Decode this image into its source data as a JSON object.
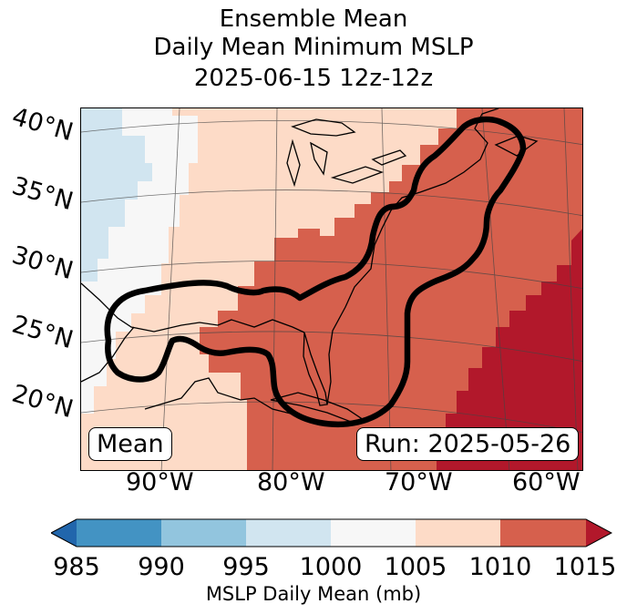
{
  "title": {
    "line1": "Ensemble Mean",
    "line2": "Daily Mean Minimum MSLP",
    "line3": "2025-06-15 12z-12z"
  },
  "latitude_labels": [
    "40°N",
    "35°N",
    "30°N",
    "25°N",
    "20°N"
  ],
  "longitude_labels": [
    "90°W",
    "80°W",
    "70°W",
    "60°W"
  ],
  "boxes": {
    "left": "Mean",
    "right": "Run: 2025-05-26"
  },
  "colorbar": {
    "ticks": [
      "985",
      "990",
      "995",
      "1000",
      "1005",
      "1010",
      "1015"
    ],
    "label": "MSLP Daily Mean (mb)",
    "colors": [
      "#2166ac",
      "#4393c3",
      "#92c5de",
      "#d1e5f0",
      "#f7f7f7",
      "#fddbc7",
      "#d6604d",
      "#b2182b"
    ]
  }
}
